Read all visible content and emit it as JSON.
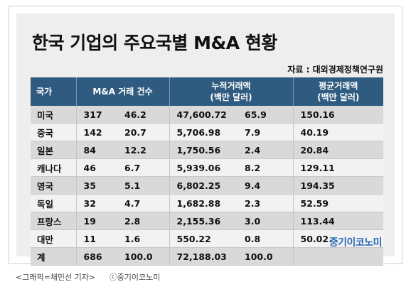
{
  "title": "한국 기업의 주요국별 M&A 현황",
  "source": "자료 : 대외경제정책연구원",
  "header": {
    "country": "국가",
    "deals": "M&A 거래 건수",
    "cumulative": "누적거래액\n(백만 달러)",
    "average": "평균거래액\n(백만 달러)"
  },
  "rows": [
    {
      "country": "미국",
      "deals": "317",
      "deals_pct": "46.2",
      "amount": "47,600.72",
      "amount_pct": "65.9",
      "avg": "150.16"
    },
    {
      "country": "중국",
      "deals": "142",
      "deals_pct": "20.7",
      "amount": "5,706.98",
      "amount_pct": "7.9",
      "avg": "40.19"
    },
    {
      "country": "일본",
      "deals": "84",
      "deals_pct": "12.2",
      "amount": "1,750.56",
      "amount_pct": "2.4",
      "avg": "20.84"
    },
    {
      "country": "캐나다",
      "deals": "46",
      "deals_pct": "6.7",
      "amount": "5,939.06",
      "amount_pct": "8.2",
      "avg": "129.11"
    },
    {
      "country": "영국",
      "deals": "35",
      "deals_pct": "5.1",
      "amount": "6,802.25",
      "amount_pct": "9.4",
      "avg": "194.35"
    },
    {
      "country": "독일",
      "deals": "32",
      "deals_pct": "4.7",
      "amount": "1,682.88",
      "amount_pct": "2.3",
      "avg": "52.59"
    },
    {
      "country": "프랑스",
      "deals": "19",
      "deals_pct": "2.8",
      "amount": "2,155.36",
      "amount_pct": "3.0",
      "avg": "113.44"
    },
    {
      "country": "대만",
      "deals": "11",
      "deals_pct": "1.6",
      "amount": "550.22",
      "amount_pct": "0.8",
      "avg": "50.02"
    },
    {
      "country": "계",
      "deals": "686",
      "deals_pct": "100.0",
      "amount": "72,188.03",
      "amount_pct": "100.0",
      "avg": ""
    }
  ],
  "brand": "중기이코노미",
  "caption_left": "<그래픽=채민선 기자>",
  "caption_right": "ⓒ중기이코노미"
}
